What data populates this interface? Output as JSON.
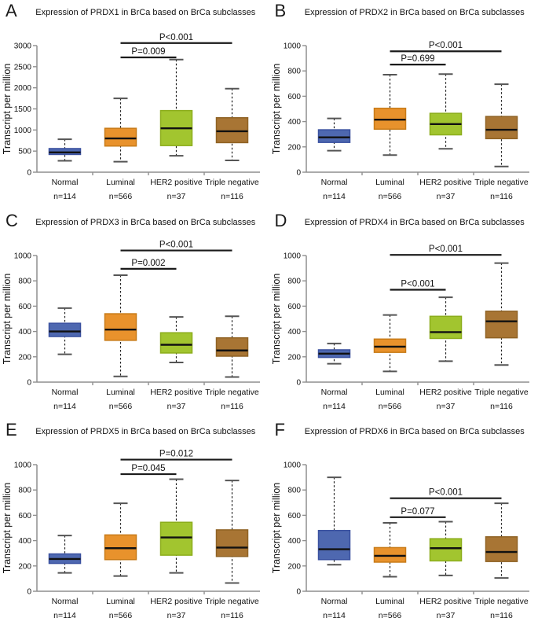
{
  "figure": {
    "ylabel": "Transcript per million",
    "categories": [
      "Normal",
      "Luminal",
      "HER2 positive",
      "Triple negative"
    ],
    "n_labels": [
      "n=114",
      "n=566",
      "n=37",
      "n=116"
    ],
    "palette": {
      "fills": [
        "#4E68B0",
        "#E8922C",
        "#A2C52F",
        "#A87534"
      ],
      "strokes": [
        "#3A51A0",
        "#C87B18",
        "#8CAD1C",
        "#8F6224"
      ],
      "median_color": "#111111",
      "axis_color": "#8f8f8f",
      "sig_bar_color": "#1a1a1a"
    }
  },
  "chart_data": [
    {
      "type": "boxplot",
      "panel": "A",
      "title": "Expression of PRDX1 in BrCa based on BrCa subclasses",
      "ylabel": "Transcript per million",
      "ylim": [
        0,
        3000
      ],
      "ytick_step": 500,
      "categories": [
        "Normal",
        "Luminal",
        "HER2 positive",
        "Triple negative"
      ],
      "n_labels": [
        "n=114",
        "n=566",
        "n=37",
        "n=116"
      ],
      "boxes": [
        {
          "label": "Normal",
          "whisker_low": 270,
          "q1": 420,
          "median": 470,
          "q3": 560,
          "whisker_high": 780
        },
        {
          "label": "Luminal",
          "whisker_low": 250,
          "q1": 620,
          "median": 800,
          "q3": 1040,
          "whisker_high": 1750
        },
        {
          "label": "HER2 positive",
          "whisker_low": 390,
          "q1": 630,
          "median": 1040,
          "q3": 1460,
          "whisker_high": 2670
        },
        {
          "label": "Triple negative",
          "whisker_low": 280,
          "q1": 700,
          "median": 970,
          "q3": 1290,
          "whisker_high": 1980
        }
      ],
      "significance": [
        {
          "label": "P=0.009",
          "from": "Luminal",
          "to": "HER2 positive",
          "bar_y": 2720
        },
        {
          "label": "P<0.001",
          "from": "Luminal",
          "to": "Triple negative",
          "bar_y": 3060
        }
      ]
    },
    {
      "type": "boxplot",
      "panel": "B",
      "title": "Expression of PRDX2 in BrCa based on BrCa subclasses",
      "ylabel": "Transcript per million",
      "ylim": [
        0,
        1000
      ],
      "ytick_step": 200,
      "categories": [
        "Normal",
        "Luminal",
        "HER2 positive",
        "Triple negative"
      ],
      "n_labels": [
        "n=114",
        "n=566",
        "n=37",
        "n=116"
      ],
      "boxes": [
        {
          "label": "Normal",
          "whisker_low": 170,
          "q1": 235,
          "median": 275,
          "q3": 335,
          "whisker_high": 425
        },
        {
          "label": "Luminal",
          "whisker_low": 135,
          "q1": 340,
          "median": 415,
          "q3": 505,
          "whisker_high": 770
        },
        {
          "label": "HER2 positive",
          "whisker_low": 185,
          "q1": 295,
          "median": 380,
          "q3": 465,
          "whisker_high": 775
        },
        {
          "label": "Triple negative",
          "whisker_low": 45,
          "q1": 265,
          "median": 335,
          "q3": 440,
          "whisker_high": 695
        }
      ],
      "significance": [
        {
          "label": "P=0.699",
          "from": "Luminal",
          "to": "HER2 positive",
          "bar_y": 850
        },
        {
          "label": "P<0.001",
          "from": "Luminal",
          "to": "Triple negative",
          "bar_y": 955
        }
      ]
    },
    {
      "type": "boxplot",
      "panel": "C",
      "title": "Expression of PRDX3 in BrCa based on BrCa subclasses",
      "ylabel": "Transcript per million",
      "ylim": [
        0,
        1000
      ],
      "ytick_step": 200,
      "categories": [
        "Normal",
        "Luminal",
        "HER2 positive",
        "Triple negative"
      ],
      "n_labels": [
        "n=114",
        "n=566",
        "n=37",
        "n=116"
      ],
      "boxes": [
        {
          "label": "Normal",
          "whisker_low": 220,
          "q1": 360,
          "median": 400,
          "q3": 465,
          "whisker_high": 585
        },
        {
          "label": "Luminal",
          "whisker_low": 45,
          "q1": 330,
          "median": 415,
          "q3": 540,
          "whisker_high": 845
        },
        {
          "label": "HER2 positive",
          "whisker_low": 155,
          "q1": 230,
          "median": 295,
          "q3": 390,
          "whisker_high": 515
        },
        {
          "label": "Triple negative",
          "whisker_low": 40,
          "q1": 205,
          "median": 250,
          "q3": 350,
          "whisker_high": 520
        }
      ],
      "significance": [
        {
          "label": "P=0.002",
          "from": "Luminal",
          "to": "HER2 positive",
          "bar_y": 895
        },
        {
          "label": "P<0.001",
          "from": "Luminal",
          "to": "Triple negative",
          "bar_y": 1040
        }
      ]
    },
    {
      "type": "boxplot",
      "panel": "D",
      "title": "Expression of PRDX4 in BrCa based on BrCa subclasses",
      "ylabel": "Transcript per million",
      "ylim": [
        0,
        1000
      ],
      "ytick_step": 200,
      "categories": [
        "Normal",
        "Luminal",
        "HER2 positive",
        "Triple negative"
      ],
      "n_labels": [
        "n=114",
        "n=566",
        "n=37",
        "n=116"
      ],
      "boxes": [
        {
          "label": "Normal",
          "whisker_low": 145,
          "q1": 195,
          "median": 225,
          "q3": 255,
          "whisker_high": 305
        },
        {
          "label": "Luminal",
          "whisker_low": 85,
          "q1": 235,
          "median": 280,
          "q3": 340,
          "whisker_high": 530
        },
        {
          "label": "HER2 positive",
          "whisker_low": 165,
          "q1": 345,
          "median": 395,
          "q3": 520,
          "whisker_high": 670
        },
        {
          "label": "Triple negative",
          "whisker_low": 135,
          "q1": 350,
          "median": 480,
          "q3": 560,
          "whisker_high": 940
        }
      ],
      "significance": [
        {
          "label": "P<0.001",
          "from": "Luminal",
          "to": "HER2 positive",
          "bar_y": 730
        },
        {
          "label": "P<0.001",
          "from": "Luminal",
          "to": "Triple negative",
          "bar_y": 1005
        }
      ]
    },
    {
      "type": "boxplot",
      "panel": "E",
      "title": "Expression of PRDX5 in BrCa based on BrCa subclasses",
      "ylabel": "Transcript per million",
      "ylim": [
        0,
        1000
      ],
      "ytick_step": 200,
      "categories": [
        "Normal",
        "Luminal",
        "HER2 positive",
        "Triple negative"
      ],
      "n_labels": [
        "n=114",
        "n=566",
        "n=37",
        "n=116"
      ],
      "boxes": [
        {
          "label": "Normal",
          "whisker_low": 145,
          "q1": 220,
          "median": 255,
          "q3": 295,
          "whisker_high": 440
        },
        {
          "label": "Luminal",
          "whisker_low": 120,
          "q1": 250,
          "median": 340,
          "q3": 445,
          "whisker_high": 695
        },
        {
          "label": "HER2 positive",
          "whisker_low": 145,
          "q1": 285,
          "median": 425,
          "q3": 545,
          "whisker_high": 885
        },
        {
          "label": "Triple negative",
          "whisker_low": 65,
          "q1": 275,
          "median": 345,
          "q3": 485,
          "whisker_high": 875
        }
      ],
      "significance": [
        {
          "label": "P=0.045",
          "from": "Luminal",
          "to": "HER2 positive",
          "bar_y": 925
        },
        {
          "label": "P=0.012",
          "from": "Luminal",
          "to": "Triple negative",
          "bar_y": 1040
        }
      ]
    },
    {
      "type": "boxplot",
      "panel": "F",
      "title": "Expression of PRDX6 in BrCa based on BrCa subclasses",
      "ylabel": "Transcript per million",
      "ylim": [
        0,
        1000
      ],
      "ytick_step": 200,
      "categories": [
        "Normal",
        "Luminal",
        "HER2 positive",
        "Triple negative"
      ],
      "n_labels": [
        "n=114",
        "n=566",
        "n=37",
        "n=116"
      ],
      "boxes": [
        {
          "label": "Normal",
          "whisker_low": 210,
          "q1": 250,
          "median": 332,
          "q3": 480,
          "whisker_high": 900
        },
        {
          "label": "Luminal",
          "whisker_low": 115,
          "q1": 230,
          "median": 280,
          "q3": 345,
          "whisker_high": 540
        },
        {
          "label": "HER2 positive",
          "whisker_low": 125,
          "q1": 240,
          "median": 340,
          "q3": 415,
          "whisker_high": 550
        },
        {
          "label": "Triple negative",
          "whisker_low": 105,
          "q1": 235,
          "median": 310,
          "q3": 430,
          "whisker_high": 695
        }
      ],
      "significance": [
        {
          "label": "P=0.077",
          "from": "Luminal",
          "to": "HER2 positive",
          "bar_y": 585
        },
        {
          "label": "P<0.001",
          "from": "Luminal",
          "to": "Triple negative",
          "bar_y": 735
        }
      ]
    }
  ]
}
